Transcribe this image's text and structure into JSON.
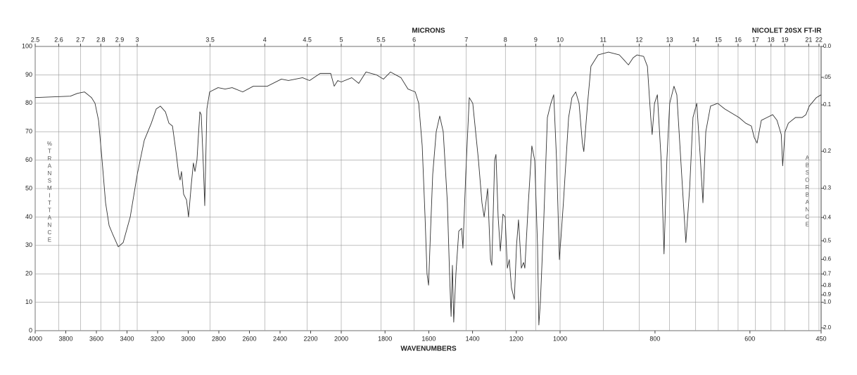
{
  "chart_data": {
    "type": "line",
    "title": "NICOLET 20SX FT-IR",
    "x_label": "WAVENUMBERS",
    "top_axis_label": "MICRONS",
    "y_label": "%TRANSMITTANCE",
    "y2_label": "ABSORBANCE",
    "xlim": [
      4000,
      450
    ],
    "xticks": [
      4000,
      3800,
      3600,
      3400,
      3200,
      3000,
      2800,
      2600,
      2400,
      2200,
      2000,
      1800,
      1600,
      1400,
      1200,
      1000,
      800,
      600,
      450
    ],
    "top_ticks": [
      2.5,
      2.6,
      2.7,
      2.8,
      2.9,
      3,
      3.5,
      4,
      4.5,
      5,
      5.5,
      6,
      7,
      8,
      9,
      10,
      11,
      12,
      13,
      14,
      15,
      16,
      17,
      18,
      19,
      21,
      22
    ],
    "ylim": [
      0,
      100
    ],
    "yticks": [
      0,
      10,
      20,
      30,
      40,
      50,
      60,
      70,
      80,
      90,
      100
    ],
    "y2ticks": [
      {
        "value": 0,
        "label": "0.0"
      },
      {
        "value": 0.05,
        "label": ".05"
      },
      0.1,
      0.2,
      0.3,
      0.4,
      0.5,
      0.6,
      0.7,
      0.8,
      0.9,
      {
        "value": 1,
        "label": "1.0"
      },
      {
        "value": 2,
        "label": "2.0"
      }
    ],
    "grid": true,
    "color": "#333333",
    "x": [
      4000,
      3770,
      3724,
      3678,
      3632,
      3609,
      3586,
      3563,
      3540,
      3517,
      3494,
      3457,
      3425,
      3379,
      3333,
      3287,
      3241,
      3209,
      3182,
      3149,
      3126,
      3103,
      3080,
      3062,
      3053,
      3044,
      3030,
      3011,
      2998,
      2979,
      2966,
      2956,
      2943,
      2924,
      2915,
      2901,
      2892,
      2878,
      2860,
      2805,
      2759,
      2713,
      2644,
      2575,
      2483,
      2391,
      2345,
      2253,
      2207,
      2138,
      2069,
      2046,
      2023,
      2000,
      1952,
      1920,
      1887,
      1839,
      1807,
      1775,
      1727,
      1695,
      1662,
      1646,
      1630,
      1617,
      1608,
      1601,
      1592,
      1582,
      1566,
      1550,
      1534,
      1515,
      1505,
      1498,
      1492,
      1486,
      1476,
      1463,
      1450,
      1444,
      1431,
      1415,
      1399,
      1373,
      1357,
      1347,
      1331,
      1318,
      1312,
      1299,
      1293,
      1283,
      1273,
      1261,
      1251,
      1241,
      1232,
      1222,
      1209,
      1199,
      1190,
      1183,
      1177,
      1167,
      1161,
      1145,
      1129,
      1116,
      1103,
      1097,
      1090,
      1074,
      1058,
      1042,
      1029,
      1016,
      1003,
      993,
      982,
      975,
      967,
      960,
      953,
      950,
      942,
      935,
      920,
      898,
      875,
      864,
      856,
      846,
      838,
      824,
      816,
      809,
      806,
      801,
      795,
      787,
      781,
      775,
      769,
      760,
      754,
      742,
      735,
      727,
      720,
      712,
      705,
      699,
      693,
      683,
      668,
      653,
      623,
      609,
      597,
      591,
      585,
      576,
      564,
      552,
      543,
      534,
      531,
      526,
      519,
      504,
      490,
      482,
      475,
      460,
      450
    ],
    "values": [
      82,
      82.5,
      83.5,
      84,
      82,
      80,
      74,
      60,
      45,
      37,
      34,
      29.5,
      31,
      40,
      55,
      67,
      73,
      78,
      79,
      77,
      73,
      72,
      63,
      55,
      53,
      56,
      48,
      46,
      40,
      52,
      59,
      56,
      60,
      77,
      76,
      58,
      44,
      78,
      84,
      85.5,
      85,
      85.5,
      84,
      86,
      86,
      88.5,
      88,
      89,
      88,
      90.5,
      90.5,
      86,
      88,
      87.5,
      89,
      87,
      91,
      90,
      88.5,
      91,
      89,
      85,
      84,
      80,
      65,
      40,
      20,
      16,
      35,
      55,
      70,
      75.5,
      70,
      45,
      20,
      5,
      23,
      3,
      20,
      35,
      36,
      29,
      55,
      82,
      80,
      60,
      45,
      40,
      50,
      25,
      23,
      60,
      62,
      40,
      28,
      41,
      40,
      22,
      25,
      15,
      11,
      30,
      39,
      30,
      22,
      24,
      22,
      45,
      65,
      60,
      30,
      2,
      10,
      40,
      75,
      80,
      83,
      60,
      25,
      45,
      75,
      82,
      84,
      80,
      66,
      63,
      80,
      93,
      97,
      98,
      97,
      95,
      93.5,
      96,
      97,
      96.5,
      93,
      75,
      69,
      80,
      83,
      60,
      27,
      60,
      80,
      86,
      83,
      50,
      31,
      50,
      75,
      80,
      62,
      45,
      70,
      79,
      80,
      78,
      75,
      73,
      72,
      68,
      66,
      74,
      75,
      76,
      74,
      69,
      58,
      70,
      73,
      75,
      75,
      76,
      79,
      82,
      83
    ]
  }
}
